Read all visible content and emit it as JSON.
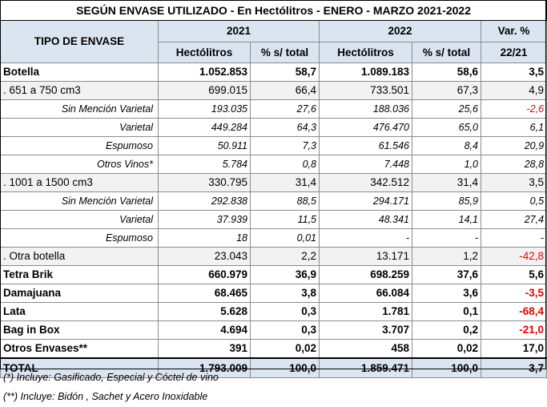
{
  "title": "SEGÚN ENVASE UTILIZADO - En Hectólitros - ENERO - MARZO 2021-2022",
  "header": {
    "tipo": "TIPO DE ENVASE",
    "year1": "2021",
    "year2": "2022",
    "var_line1": "Var. %",
    "var_line2": "22/21",
    "hl": "Hectólitros",
    "pct": "% s/ total"
  },
  "rows": [
    {
      "label": "Botella",
      "h21": "1.052.853",
      "p21": "58,7",
      "h22": "1.089.183",
      "p22": "58,6",
      "var": "3,5"
    },
    {
      "label": ". 651 a 750 cm3",
      "h21": "699.015",
      "p21": "66,4",
      "h22": "733.501",
      "p22": "67,3",
      "var": "4,9"
    },
    {
      "label": "Sin Mención Varietal",
      "h21": "193.035",
      "p21": "27,6",
      "h22": "188.036",
      "p22": "25,6",
      "var": "-2,6"
    },
    {
      "label": "Varietal",
      "h21": "449.284",
      "p21": "64,3",
      "h22": "476.470",
      "p22": "65,0",
      "var": "6,1"
    },
    {
      "label": "Espumoso",
      "h21": "50.911",
      "p21": "7,3",
      "h22": "61.546",
      "p22": "8,4",
      "var": "20,9"
    },
    {
      "label": "Otros Vinos*",
      "h21": "5.784",
      "p21": "0,8",
      "h22": "7.448",
      "p22": "1,0",
      "var": "28,8"
    },
    {
      "label": ". 1001 a 1500 cm3",
      "h21": "330.795",
      "p21": "31,4",
      "h22": "342.512",
      "p22": "31,4",
      "var": "3,5"
    },
    {
      "label": "Sin Mención Varietal",
      "h21": "292.838",
      "p21": "88,5",
      "h22": "294.171",
      "p22": "85,9",
      "var": "0,5"
    },
    {
      "label": "Varietal",
      "h21": "37.939",
      "p21": "11,5",
      "h22": "48.341",
      "p22": "14,1",
      "var": "27,4"
    },
    {
      "label": "Espumoso",
      "h21": "18",
      "p21": "0,01",
      "h22": "-",
      "p22": "-",
      "var": "-"
    },
    {
      "label": ". Otra botella",
      "h21": "23.043",
      "p21": "2,2",
      "h22": "13.171",
      "p22": "1,2",
      "var": "-42,8"
    },
    {
      "label": "Tetra Brik",
      "h21": "660.979",
      "p21": "36,9",
      "h22": "698.259",
      "p22": "37,6",
      "var": "5,6"
    },
    {
      "label": "Damajuana",
      "h21": "68.465",
      "p21": "3,8",
      "h22": "66.084",
      "p22": "3,6",
      "var": "-3,5"
    },
    {
      "label": "Lata",
      "h21": "5.628",
      "p21": "0,3",
      "h22": "1.781",
      "p22": "0,1",
      "var": "-68,4"
    },
    {
      "label": "Bag in Box",
      "h21": "4.694",
      "p21": "0,3",
      "h22": "3.707",
      "p22": "0,2",
      "var": "-21,0"
    },
    {
      "label": "Otros Envases**",
      "h21": "391",
      "p21": "0,02",
      "h22": "458",
      "p22": "0,02",
      "var": "17,0"
    }
  ],
  "total": {
    "label": "TOTAL",
    "h21": "1.793.009",
    "p21": "100,0",
    "h22": "1.859.471",
    "p22": "100,0",
    "var": "3,7"
  },
  "footnotes": [
    "(*) Incluye: Gasificado, Especial y Cóctel de vino",
    "(**) Incluye: Bidón , Sachet y Acero Inoxidable"
  ],
  "colors": {
    "header_bg": "#dbe5f1",
    "shade_bg": "#f2f2f2",
    "negative": "#e60000"
  }
}
